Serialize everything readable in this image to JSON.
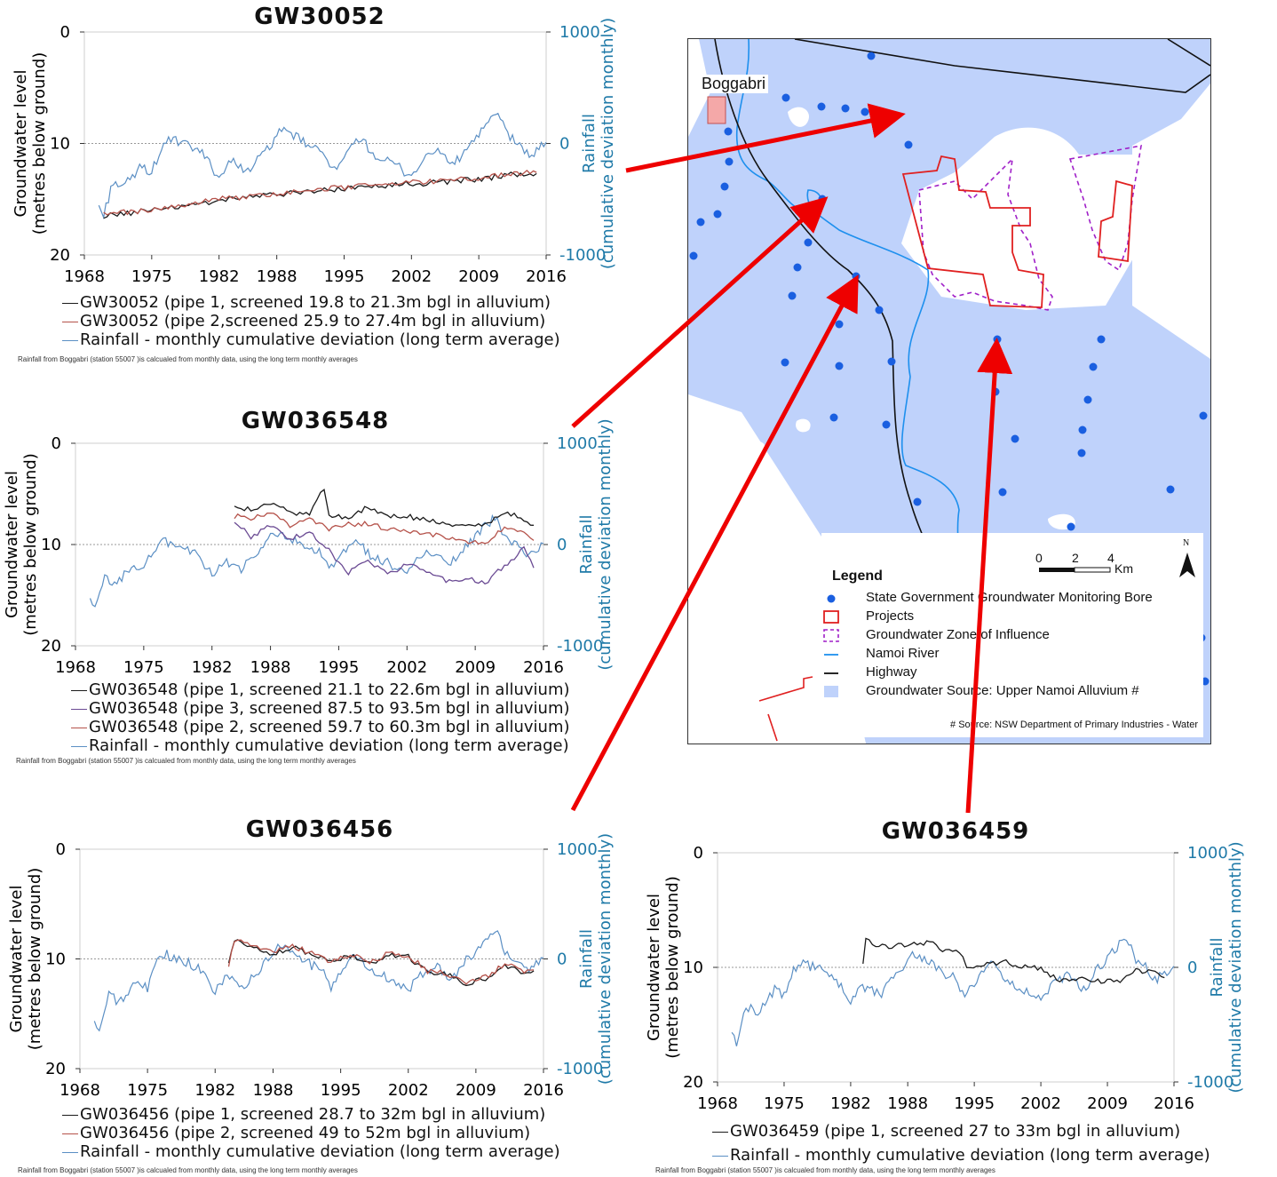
{
  "colors": {
    "pipe1": "#1a1a1a",
    "pipe2": "#b5524a",
    "pipe3": "#6a4a93",
    "rainfall": "#5b8fc4",
    "rain_axis": "#1f7aa8",
    "arrow": "#ee0000",
    "alluvium": "#bfd2fb",
    "bore": "#1a5fe0",
    "projects": "#e02020",
    "zone": "#a020c8",
    "river": "#1e90ee",
    "highway": "#111111"
  },
  "chart_data": [
    {
      "type": "line",
      "title": "GW30052",
      "ylabel": "Groundwater level\n(metres below ground)",
      "y2label": "Rainfall\n(cumulative deviation monthly)",
      "xlim": [
        1968,
        2016
      ],
      "ylim": [
        0,
        20
      ],
      "y2lim": [
        -1000,
        1000
      ],
      "xticks": [
        "1968",
        "1975",
        "1982",
        "1988",
        "1995",
        "2002",
        "2009",
        "2016"
      ],
      "yticks": [
        "0",
        "10",
        "20"
      ],
      "y2ticks": [
        "1000",
        "0",
        "-1000"
      ],
      "series": [
        {
          "name": "GW30052 (pipe 1, screened 19.8 to 21.3m bgl in alluvium)",
          "color": "pipe1",
          "axis": "left",
          "x": [
            1970,
            1976,
            1982,
            1988,
            1994,
            2000,
            2005,
            2010,
            2012,
            2015
          ],
          "y": [
            16.5,
            15.9,
            15.1,
            14.6,
            14.1,
            13.7,
            13.5,
            13.1,
            12.8,
            12.7
          ]
        },
        {
          "name": "GW30052 (pipe 2,screened 25.9 to 27.4m bgl in alluvium)",
          "color": "pipe2",
          "axis": "left",
          "x": [
            1970,
            1976,
            1982,
            1988,
            1994,
            2000,
            2005,
            2010,
            2012,
            2015
          ],
          "y": [
            16.4,
            15.8,
            15.0,
            14.5,
            14.0,
            13.6,
            13.4,
            13.0,
            12.7,
            12.6
          ]
        },
        {
          "name": "Rainfall - monthly cumulative deviation (long term average)",
          "color": "rainfall",
          "axis": "right",
          "x": [
            1969.5,
            1970,
            1971,
            1972,
            1973,
            1974,
            1975,
            1976,
            1977,
            1978,
            1979,
            1980,
            1981,
            1982,
            1983,
            1984,
            1985,
            1986,
            1987,
            1988,
            1989,
            1990,
            1991,
            1992,
            1993,
            1994,
            1995,
            1996,
            1997,
            1998,
            1999,
            2000,
            2001,
            2002,
            2003,
            2004,
            2005,
            2006,
            2007,
            2008,
            2009,
            2010,
            2011,
            2012,
            2013,
            2014,
            2015,
            2016
          ],
          "y": [
            -560,
            -650,
            -330,
            -400,
            -300,
            -200,
            -260,
            -40,
            40,
            0,
            -30,
            -70,
            -170,
            -310,
            -170,
            -180,
            -250,
            -150,
            -60,
            80,
            110,
            60,
            0,
            -60,
            -80,
            -250,
            -150,
            -10,
            30,
            -90,
            -150,
            -180,
            -230,
            -300,
            -160,
            -100,
            -60,
            -180,
            -150,
            -10,
            80,
            180,
            270,
            80,
            10,
            -100,
            -70,
            10
          ]
        }
      ],
      "note": "Rainfall from  Boggabri (station  55007 )is calcualed from monthly data, using the long term monthly averages"
    },
    {
      "type": "line",
      "title": "GW036548",
      "ylabel": "Groundwater level\n(metres below ground)",
      "y2label": "Rainfall\n(cumulative deviation monthly)",
      "xlim": [
        1968,
        2016
      ],
      "ylim": [
        0,
        20
      ],
      "y2lim": [
        -1000,
        1000
      ],
      "xticks": [
        "1968",
        "1975",
        "1982",
        "1988",
        "1995",
        "2002",
        "2009",
        "2016"
      ],
      "yticks": [
        "0",
        "10",
        "20"
      ],
      "y2ticks": [
        "1000",
        "0",
        "-1000"
      ],
      "series": [
        {
          "name": "GW036548 (pipe 1, screened 21.1 to 22.6m bgl in alluvium)",
          "color": "pipe1",
          "axis": "left",
          "x": [
            1984.3,
            1986,
            1988,
            1990,
            1992,
            1993.5,
            1994,
            1996,
            1998,
            2000,
            2002,
            2004,
            2006,
            2008,
            2010,
            2012,
            2014,
            2015
          ],
          "y": [
            6.3,
            6.6,
            5.8,
            6.9,
            7.0,
            4.4,
            7.2,
            7.3,
            6.3,
            7.1,
            7.2,
            7.6,
            7.9,
            8.2,
            8.1,
            6.8,
            7.5,
            8.1
          ]
        },
        {
          "name": "GW036548 (pipe 3, screened 87.5 to 93.5m bgl in alluvium)",
          "color": "pipe3",
          "axis": "left",
          "x": [
            1984.3,
            1986,
            1988,
            1990,
            1992,
            1994,
            1996,
            1998,
            2000,
            2002,
            2004,
            2006,
            2008,
            2010,
            2012,
            2014,
            2015
          ],
          "y": [
            7.8,
            9.2,
            8.2,
            9.4,
            8.8,
            10.6,
            12.8,
            11.5,
            13.0,
            11.9,
            12.6,
            13.5,
            13.4,
            13.8,
            12.1,
            10.4,
            12.3
          ]
        },
        {
          "name": "GW036548 (pipe 2, screened 59.7 to 60.3m bgl in alluvium)",
          "color": "pipe2",
          "axis": "left",
          "x": [
            1984.3,
            1986,
            1988,
            1990,
            1992,
            1994,
            1996,
            1998,
            2000,
            2002,
            2004,
            2006,
            2008,
            2010,
            2012,
            2014,
            2015
          ],
          "y": [
            7.2,
            7.4,
            6.9,
            8.1,
            7.6,
            8.4,
            8.0,
            7.9,
            8.5,
            8.6,
            8.9,
            9.3,
            9.7,
            9.8,
            8.4,
            8.6,
            9.6
          ]
        },
        {
          "name": "Rainfall - monthly cumulative deviation (long term average)",
          "color": "rainfall",
          "axis": "right",
          "x": [
            1969.5,
            1970,
            1971,
            1972,
            1973,
            1974,
            1975,
            1976,
            1977,
            1978,
            1979,
            1980,
            1981,
            1982,
            1983,
            1984,
            1985,
            1986,
            1987,
            1988,
            1989,
            1990,
            1991,
            1992,
            1993,
            1994,
            1995,
            1996,
            1997,
            1998,
            1999,
            2000,
            2001,
            2002,
            2003,
            2004,
            2005,
            2006,
            2007,
            2008,
            2009,
            2010,
            2011,
            2012,
            2013,
            2014,
            2015,
            2016
          ],
          "y": [
            -560,
            -650,
            -330,
            -400,
            -300,
            -200,
            -260,
            -40,
            40,
            0,
            -30,
            -70,
            -170,
            -310,
            -170,
            -180,
            -250,
            -150,
            -60,
            80,
            110,
            60,
            0,
            -60,
            -80,
            -250,
            -150,
            -10,
            30,
            -90,
            -150,
            -180,
            -230,
            -300,
            -160,
            -100,
            -60,
            -180,
            -150,
            -10,
            80,
            180,
            270,
            80,
            10,
            -100,
            -70,
            10
          ]
        }
      ],
      "note": "Rainfall from  Boggabri (station  55007 )is calcualed from monthly data, using the long term monthly averages"
    },
    {
      "type": "line",
      "title": "GW036456",
      "ylabel": "Groundwater level\n(metres below ground)",
      "y2label": "Rainfall\n(cumulative deviation monthly)",
      "xlim": [
        1968,
        2016
      ],
      "ylim": [
        0,
        20
      ],
      "y2lim": [
        -1000,
        1000
      ],
      "xticks": [
        "1968",
        "1975",
        "1982",
        "1988",
        "1995",
        "2002",
        "2009",
        "2016"
      ],
      "yticks": [
        "0",
        "10",
        "20"
      ],
      "y2ticks": [
        "1000",
        "0",
        "-1000"
      ],
      "series": [
        {
          "name": "GW036456 (pipe 1, screened 28.7 to 32m bgl in alluvium)",
          "color": "pipe1",
          "axis": "left",
          "x": [
            1983.4,
            1984,
            1986,
            1988,
            1990,
            1992,
            1994,
            1996,
            1998,
            2000,
            2002,
            2004,
            2006,
            2008,
            2010,
            2012,
            2014,
            2015
          ],
          "y": [
            10.4,
            8.3,
            8.9,
            9.5,
            8.9,
            9.6,
            10.3,
            9.7,
            10.4,
            9.6,
            9.8,
            11.2,
            11.4,
            12.3,
            11.8,
            10.6,
            11.2,
            11.1
          ]
        },
        {
          "name": "GW036456 (pipe 2, screened 49 to 52m bgl in alluvium)",
          "color": "pipe2",
          "axis": "left",
          "x": [
            1983.4,
            1984,
            1986,
            1988,
            1990,
            1992,
            1994,
            1996,
            1998,
            2000,
            2002,
            2004,
            2006,
            2008,
            2010,
            2012,
            2014,
            2015
          ],
          "y": [
            10.5,
            8.2,
            8.8,
            9.4,
            8.8,
            9.5,
            10.2,
            9.6,
            10.3,
            9.5,
            9.7,
            11.1,
            11.3,
            12.2,
            11.7,
            10.5,
            11.1,
            11.0
          ]
        },
        {
          "name": "Rainfall - monthly cumulative deviation (long term average)",
          "color": "rainfall",
          "axis": "right",
          "x": [
            1969.5,
            1970,
            1971,
            1972,
            1973,
            1974,
            1975,
            1976,
            1977,
            1978,
            1979,
            1980,
            1981,
            1982,
            1983,
            1984,
            1985,
            1986,
            1987,
            1988,
            1989,
            1990,
            1991,
            1992,
            1993,
            1994,
            1995,
            1996,
            1997,
            1998,
            1999,
            2000,
            2001,
            2002,
            2003,
            2004,
            2005,
            2006,
            2007,
            2008,
            2009,
            2010,
            2011,
            2012,
            2013,
            2014,
            2015,
            2016
          ],
          "y": [
            -560,
            -650,
            -330,
            -400,
            -300,
            -200,
            -260,
            -40,
            40,
            0,
            -30,
            -70,
            -170,
            -310,
            -170,
            -180,
            -250,
            -150,
            -60,
            80,
            110,
            60,
            0,
            -60,
            -80,
            -250,
            -150,
            -10,
            30,
            -90,
            -150,
            -180,
            -230,
            -300,
            -160,
            -100,
            -60,
            -180,
            -150,
            -10,
            80,
            180,
            270,
            80,
            10,
            -100,
            -70,
            10
          ]
        }
      ],
      "note": "Rainfall from  Boggabri (station  55007 )is calcualed from monthly data, using the long term monthly averages"
    },
    {
      "type": "line",
      "title": "GW036459",
      "ylabel": "Groundwater level\n(metres below ground)",
      "y2label": "Rainfall\n(cumulative deviation monthly)",
      "xlim": [
        1968,
        2016
      ],
      "ylim": [
        0,
        20
      ],
      "y2lim": [
        -1000,
        1000
      ],
      "xticks": [
        "1968",
        "1975",
        "1982",
        "1988",
        "1995",
        "2002",
        "2009",
        "2016"
      ],
      "yticks": [
        "0",
        "10",
        "20"
      ],
      "y2ticks": [
        "1000",
        "0",
        "-1000"
      ],
      "series": [
        {
          "name": "GW036459 (pipe 1, screened 27 to 33m bgl in alluvium)",
          "color": "pipe1",
          "axis": "left",
          "x": [
            1983.3,
            1983.6,
            1986,
            1988,
            1990,
            1992,
            1993.8,
            1994.2,
            1996,
            1998,
            2000,
            2002,
            2004,
            2006,
            2008,
            2010,
            2012,
            2014,
            2015
          ],
          "y": [
            9.6,
            7.7,
            8.3,
            8.0,
            7.8,
            8.5,
            8.9,
            10.1,
            9.9,
            9.4,
            10.0,
            10.1,
            11.1,
            11.0,
            11.2,
            11.3,
            10.2,
            10.5,
            10.9
          ]
        },
        {
          "name": "Rainfall - monthly cumulative deviation (long term average)",
          "color": "rainfall",
          "axis": "right",
          "x": [
            1969.5,
            1970,
            1971,
            1972,
            1973,
            1974,
            1975,
            1976,
            1977,
            1978,
            1979,
            1980,
            1981,
            1982,
            1983,
            1984,
            1985,
            1986,
            1987,
            1988,
            1989,
            1990,
            1991,
            1992,
            1993,
            1994,
            1995,
            1996,
            1997,
            1998,
            1999,
            2000,
            2001,
            2002,
            2003,
            2004,
            2005,
            2006,
            2007,
            2008,
            2009,
            2010,
            2011,
            2012,
            2013,
            2014,
            2015,
            2016
          ],
          "y": [
            -560,
            -650,
            -330,
            -400,
            -300,
            -200,
            -260,
            -40,
            40,
            0,
            -30,
            -70,
            -170,
            -310,
            -170,
            -180,
            -250,
            -150,
            -60,
            80,
            110,
            60,
            0,
            -60,
            -80,
            -250,
            -150,
            -10,
            30,
            -90,
            -150,
            -180,
            -230,
            -300,
            -160,
            -100,
            -60,
            -180,
            -150,
            -10,
            80,
            180,
            270,
            80,
            10,
            -100,
            -70,
            10
          ]
        }
      ],
      "note": "Rainfall from  Boggabri (station  55007 )is calcualed from monthly data, using the long term monthly averages"
    }
  ],
  "map": {
    "town_label": "Boggabri",
    "legend_title": "Legend",
    "legend_items": [
      "State Government Groundwater Monitoring Bore",
      "Projects",
      "Groundwater Zone of Influence",
      "Namoi River",
      "Highway",
      "Groundwater Source: Upper Namoi Alluvium #"
    ],
    "scale_labels": [
      "0",
      "2",
      "4"
    ],
    "scale_unit": "Km",
    "north": "N",
    "source": "# Source: NSW Department of Primary Industries - Water"
  }
}
